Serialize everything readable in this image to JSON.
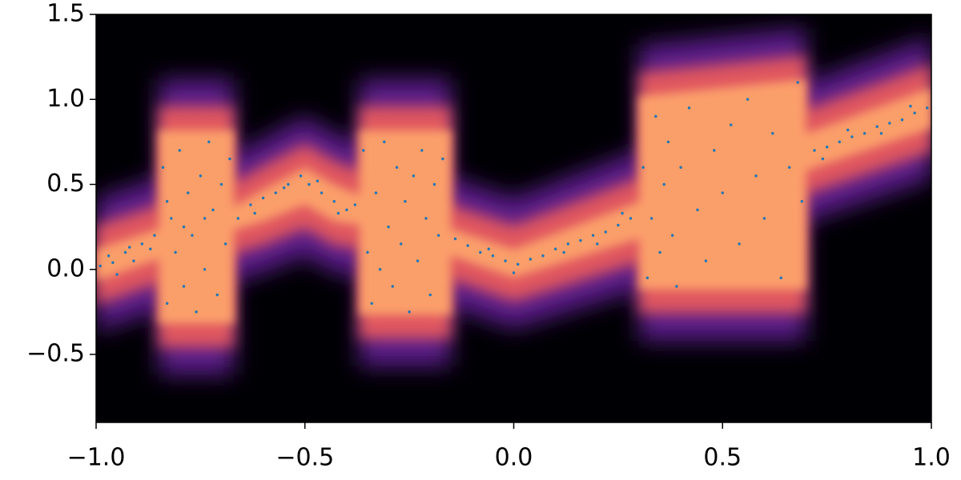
{
  "chart_data": {
    "type": "scatter",
    "xlim": [
      -1,
      1
    ],
    "ylim": [
      -0.9,
      1.5
    ],
    "xticks": [
      {
        "value": -1,
        "label": "−1.0"
      },
      {
        "value": -0.5,
        "label": "−0.5"
      },
      {
        "value": 0,
        "label": "0.0"
      },
      {
        "value": 0.5,
        "label": "0.5"
      },
      {
        "value": 1,
        "label": "1.0"
      }
    ],
    "yticks": [
      {
        "value": -0.5,
        "label": "−0.5"
      },
      {
        "value": 0,
        "label": "0.0"
      },
      {
        "value": 0.5,
        "label": "0.5"
      },
      {
        "value": 1,
        "label": "1.0"
      },
      {
        "value": 1.5,
        "label": "1.5"
      }
    ],
    "background": "#000004",
    "density": {
      "colors": [
        "#5b1f8a",
        "#e0565f",
        "#fb9f6b"
      ],
      "x": [
        -1,
        -0.85,
        -0.85,
        -0.67,
        -0.67,
        -0.6,
        -0.5,
        -0.43,
        -0.37,
        -0.37,
        -0.15,
        -0.15,
        0,
        0.3,
        0.3,
        0.7,
        0.7,
        1
      ],
      "low": [
        -0.05,
        0.08,
        -0.3,
        -0.3,
        0.25,
        0.3,
        0.4,
        0.3,
        0.28,
        -0.25,
        -0.25,
        0.1,
        -0.03,
        0.2,
        -0.1,
        -0.1,
        0.6,
        0.85
      ],
      "high": [
        0.1,
        0.22,
        0.8,
        0.8,
        0.35,
        0.45,
        0.58,
        0.48,
        0.42,
        0.8,
        0.8,
        0.22,
        0.1,
        0.38,
        1.0,
        1.1,
        0.78,
        1.05
      ]
    },
    "series": [
      {
        "color": "#1f77b4",
        "x": [
          -0.99,
          -0.97,
          -0.95,
          -0.93,
          -0.91,
          -0.89,
          -0.87,
          -0.86,
          -0.96,
          -0.92,
          -0.84,
          -0.83,
          -0.82,
          -0.81,
          -0.8,
          -0.79,
          -0.78,
          -0.77,
          -0.76,
          -0.75,
          -0.74,
          -0.73,
          -0.72,
          -0.71,
          -0.7,
          -0.69,
          -0.68,
          -0.83,
          -0.79,
          -0.74,
          -0.66,
          -0.63,
          -0.6,
          -0.57,
          -0.54,
          -0.51,
          -0.49,
          -0.46,
          -0.43,
          -0.4,
          -0.38,
          -0.62,
          -0.55,
          -0.47,
          -0.42,
          -0.36,
          -0.35,
          -0.34,
          -0.33,
          -0.32,
          -0.31,
          -0.3,
          -0.29,
          -0.28,
          -0.27,
          -0.26,
          -0.25,
          -0.24,
          -0.23,
          -0.22,
          -0.21,
          -0.2,
          -0.19,
          -0.18,
          -0.17,
          -0.14,
          -0.11,
          -0.08,
          -0.05,
          -0.02,
          0.01,
          0.04,
          0.07,
          0.1,
          0.13,
          0.16,
          0.19,
          0.22,
          0.25,
          0.28,
          -0.06,
          0.0,
          0.12,
          0.2,
          0.26,
          0.31,
          0.32,
          0.33,
          0.34,
          0.35,
          0.36,
          0.37,
          0.38,
          0.39,
          0.4,
          0.42,
          0.44,
          0.46,
          0.48,
          0.5,
          0.52,
          0.54,
          0.56,
          0.58,
          0.6,
          0.62,
          0.64,
          0.66,
          0.68,
          0.69,
          0.72,
          0.75,
          0.78,
          0.81,
          0.84,
          0.87,
          0.9,
          0.93,
          0.96,
          0.99,
          0.74,
          0.8,
          0.88,
          0.95
        ],
        "values": [
          0.02,
          0.08,
          -0.03,
          0.1,
          0.05,
          0.15,
          0.12,
          0.2,
          0.04,
          0.13,
          0.6,
          -0.2,
          0.3,
          0.1,
          0.7,
          -0.1,
          0.45,
          0.2,
          -0.25,
          0.55,
          0.0,
          0.75,
          0.35,
          -0.15,
          0.5,
          0.15,
          0.65,
          0.4,
          0.25,
          0.3,
          0.3,
          0.38,
          0.42,
          0.45,
          0.5,
          0.55,
          0.5,
          0.45,
          0.4,
          0.35,
          0.38,
          0.33,
          0.48,
          0.52,
          0.33,
          0.7,
          0.1,
          -0.2,
          0.45,
          0.0,
          0.75,
          0.25,
          -0.1,
          0.6,
          0.15,
          0.4,
          -0.25,
          0.55,
          0.05,
          0.7,
          0.3,
          -0.15,
          0.5,
          0.2,
          0.65,
          0.18,
          0.14,
          0.1,
          0.08,
          0.05,
          0.03,
          0.06,
          0.08,
          0.12,
          0.15,
          0.17,
          0.2,
          0.22,
          0.26,
          0.3,
          0.12,
          -0.02,
          0.1,
          0.15,
          0.33,
          0.6,
          -0.05,
          0.3,
          0.9,
          0.1,
          0.5,
          0.75,
          0.2,
          -0.1,
          0.6,
          0.95,
          0.35,
          0.05,
          0.7,
          0.45,
          0.85,
          0.15,
          1.0,
          0.55,
          0.3,
          0.8,
          -0.05,
          0.6,
          1.1,
          0.4,
          0.7,
          0.72,
          0.75,
          0.78,
          0.8,
          0.84,
          0.86,
          0.88,
          0.92,
          0.95,
          0.65,
          0.82,
          0.8,
          0.96
        ]
      }
    ]
  }
}
